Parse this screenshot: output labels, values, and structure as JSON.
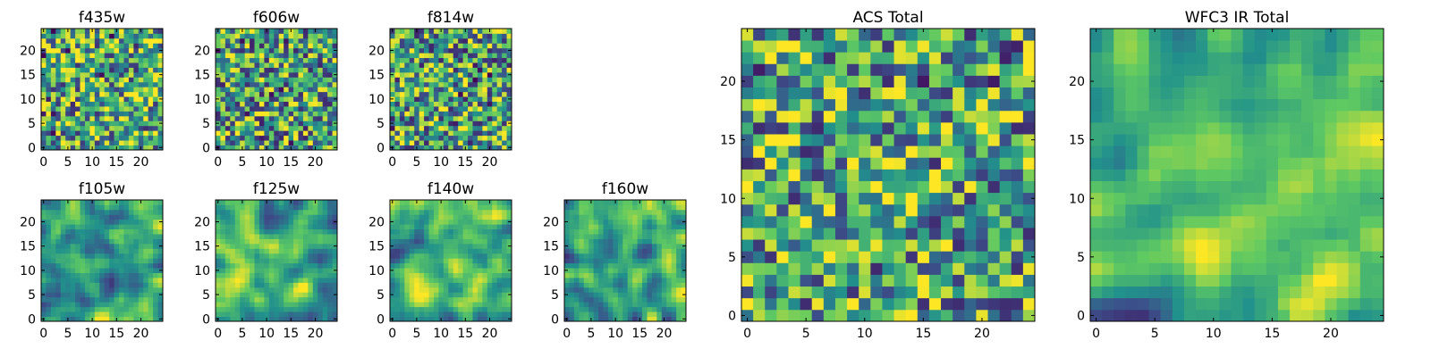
{
  "figure": {
    "background": "#ffffff",
    "colormap": "viridis",
    "colormap_stops": [
      "#440154",
      "#3b528b",
      "#21918c",
      "#5ec962",
      "#fde725"
    ]
  },
  "chart_data": [
    {
      "id": "f435w",
      "type": "heatmap",
      "title": "f435w",
      "xlim": [
        -0.5,
        24.5
      ],
      "ylim": [
        -0.5,
        24.5
      ],
      "xticks": [
        "0",
        "5",
        "10",
        "15",
        "20"
      ],
      "yticks": [
        "0",
        "5",
        "10",
        "15",
        "20"
      ],
      "grid_size": [
        25,
        25
      ],
      "field": "noise",
      "mean_level": 0.62,
      "seed": 11
    },
    {
      "id": "f606w",
      "type": "heatmap",
      "title": "f606w",
      "xlim": [
        -0.5,
        24.5
      ],
      "ylim": [
        -0.5,
        24.5
      ],
      "xticks": [
        "0",
        "5",
        "10",
        "15",
        "20"
      ],
      "yticks": [
        "0",
        "5",
        "10",
        "15",
        "20"
      ],
      "grid_size": [
        25,
        25
      ],
      "field": "noise",
      "mean_level": 0.58,
      "seed": 23
    },
    {
      "id": "f814w",
      "type": "heatmap",
      "title": "f814w",
      "xlim": [
        -0.5,
        24.5
      ],
      "ylim": [
        -0.5,
        24.5
      ],
      "xticks": [
        "0",
        "5",
        "10",
        "15",
        "20"
      ],
      "yticks": [
        "0",
        "5",
        "10",
        "15",
        "20"
      ],
      "grid_size": [
        25,
        25
      ],
      "field": "noise",
      "mean_level": 0.58,
      "seed": 37
    },
    {
      "id": "f105w",
      "type": "heatmap",
      "title": "f105w",
      "xlim": [
        -0.5,
        24.5
      ],
      "ylim": [
        -0.5,
        24.5
      ],
      "xticks": [
        "0",
        "5",
        "10",
        "15",
        "20"
      ],
      "yticks": [
        "0",
        "5",
        "10",
        "15",
        "20"
      ],
      "grid_size": [
        25,
        25
      ],
      "field": "smooth",
      "mean_level": 0.6,
      "seed": 41
    },
    {
      "id": "f125w",
      "type": "heatmap",
      "title": "f125w",
      "xlim": [
        -0.5,
        24.5
      ],
      "ylim": [
        -0.5,
        24.5
      ],
      "xticks": [
        "0",
        "5",
        "10",
        "15",
        "20"
      ],
      "yticks": [
        "0",
        "5",
        "10",
        "15",
        "20"
      ],
      "grid_size": [
        25,
        25
      ],
      "field": "smooth",
      "mean_level": 0.62,
      "seed": 53
    },
    {
      "id": "f140w",
      "type": "heatmap",
      "title": "f140w",
      "xlim": [
        -0.5,
        24.5
      ],
      "ylim": [
        -0.5,
        24.5
      ],
      "xticks": [
        "0",
        "5",
        "10",
        "15",
        "20"
      ],
      "yticks": [
        "0",
        "5",
        "10",
        "15",
        "20"
      ],
      "grid_size": [
        25,
        25
      ],
      "field": "smooth",
      "mean_level": 0.62,
      "seed": 67
    },
    {
      "id": "f160w",
      "type": "heatmap",
      "title": "f160w",
      "xlim": [
        -0.5,
        24.5
      ],
      "ylim": [
        -0.5,
        24.5
      ],
      "xticks": [
        "0",
        "5",
        "10",
        "15",
        "20"
      ],
      "yticks": [
        "0",
        "5",
        "10",
        "15",
        "20"
      ],
      "grid_size": [
        25,
        25
      ],
      "field": "smooth",
      "mean_level": 0.58,
      "seed": 79
    },
    {
      "id": "acs-total",
      "type": "heatmap",
      "title": "ACS Total",
      "xlim": [
        -0.5,
        24.5
      ],
      "ylim": [
        -0.5,
        24.5
      ],
      "xticks": [
        "0",
        "5",
        "10",
        "15",
        "20"
      ],
      "yticks": [
        "0",
        "5",
        "10",
        "15",
        "20"
      ],
      "grid_size": [
        25,
        25
      ],
      "field": "noise-blob",
      "mean_level": 0.6,
      "seed": 83,
      "bright_region": {
        "x": 13,
        "y": 11,
        "radius": 3
      }
    },
    {
      "id": "wfc3-ir-total",
      "type": "heatmap",
      "title": "WFC3 IR Total",
      "xlim": [
        -0.5,
        24.5
      ],
      "ylim": [
        -0.5,
        24.5
      ],
      "xticks": [
        "0",
        "5",
        "10",
        "15",
        "20"
      ],
      "yticks": [
        "0",
        "5",
        "10",
        "15",
        "20"
      ],
      "grid_size": [
        25,
        25
      ],
      "field": "smooth-blob",
      "mean_level": 0.58,
      "seed": 97,
      "bright_region": {
        "x": 19,
        "y": 3,
        "radius": 4
      }
    }
  ]
}
